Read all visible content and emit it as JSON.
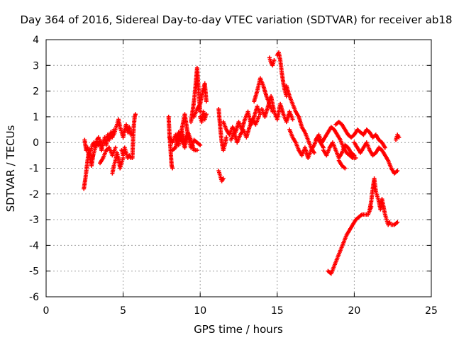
{
  "chart_data": {
    "type": "scatter",
    "title": "Day 364 of 2016, Sidereal Day-to-day VTEC variation (SDTVAR) for receiver ab18",
    "xlabel": "GPS time / hours",
    "ylabel": "SDTVAR / TECUs",
    "xlim": [
      0,
      25
    ],
    "ylim": [
      -6,
      4
    ],
    "xticks": [
      0,
      5,
      10,
      15,
      20,
      25
    ],
    "yticks": [
      -6,
      -5,
      -4,
      -3,
      -2,
      -1,
      0,
      1,
      2,
      3,
      4
    ],
    "grid": true,
    "marker": "+",
    "color": "#ff0000",
    "series": [
      {
        "name": "SDTVAR",
        "segments": [
          {
            "x": [
              2.45,
              2.55,
              2.65,
              2.75,
              2.85,
              2.95,
              3.05
            ],
            "y": [
              -1.8,
              -1.4,
              -0.9,
              -0.4,
              -0.6,
              -0.9,
              -0.5
            ]
          },
          {
            "x": [
              2.5,
              2.6,
              2.7,
              2.8,
              2.9,
              3.0,
              3.1,
              3.2,
              3.3,
              3.4
            ],
            "y": [
              0.1,
              -0.3,
              -0.2,
              -0.5,
              -0.3,
              -0.1,
              0.0,
              -0.2,
              0.1,
              0.2
            ]
          },
          {
            "x": [
              3.0,
              3.1,
              3.2,
              3.3,
              3.4,
              3.5,
              3.6,
              3.7,
              3.8,
              3.9,
              4.0,
              4.1,
              4.2,
              4.3,
              4.4
            ],
            "y": [
              -0.6,
              -0.4,
              -0.2,
              0.0,
              -0.1,
              0.1,
              -0.3,
              0.0,
              0.2,
              -0.1,
              0.3,
              0.1,
              0.4,
              0.2,
              0.5
            ]
          },
          {
            "x": [
              3.5,
              3.7,
              3.9,
              4.1,
              4.3,
              4.5
            ],
            "y": [
              -0.8,
              -0.6,
              -0.3,
              -0.2,
              -0.5,
              -0.2
            ]
          },
          {
            "x": [
              4.3,
              4.4,
              4.5,
              4.6,
              4.7,
              4.8,
              4.9,
              5.0
            ],
            "y": [
              -1.2,
              -0.9,
              -0.7,
              -0.4,
              -0.6,
              -1.0,
              -0.8,
              -0.6
            ]
          },
          {
            "x": [
              4.4,
              4.5,
              4.6,
              4.7,
              4.8,
              4.9,
              5.0,
              5.1,
              5.2,
              5.3,
              5.4,
              5.5
            ],
            "y": [
              0.3,
              0.5,
              0.7,
              0.9,
              0.6,
              0.4,
              0.2,
              0.5,
              0.7,
              0.4,
              0.6,
              0.3
            ]
          },
          {
            "x": [
              4.9,
              5.0,
              5.1,
              5.2,
              5.3,
              5.4,
              5.5
            ],
            "y": [
              -0.3,
              -0.5,
              -0.2,
              -0.4,
              -0.6,
              -0.5,
              -0.6
            ]
          },
          {
            "x": [
              5.6,
              5.65,
              5.7,
              5.75,
              5.8
            ],
            "y": [
              -0.6,
              0.2,
              0.7,
              1.0,
              1.1
            ]
          },
          {
            "x": [
              7.95,
              8.0,
              8.05,
              8.1,
              8.15,
              8.2
            ],
            "y": [
              1.0,
              0.4,
              0.0,
              -0.5,
              -0.9,
              -1.0
            ]
          },
          {
            "x": [
              8.0,
              8.2,
              8.4,
              8.6,
              8.8,
              9.0,
              9.2,
              9.4,
              9.6,
              9.8,
              10.0
            ],
            "y": [
              0.2,
              0.0,
              0.3,
              -0.1,
              0.5,
              0.0,
              0.3,
              -0.2,
              0.1,
              0.0,
              -0.1
            ]
          },
          {
            "x": [
              8.2,
              8.4,
              8.6,
              8.8,
              9.0,
              9.2,
              9.4,
              9.6,
              9.8
            ],
            "y": [
              -0.3,
              -0.2,
              0.4,
              0.1,
              -0.2,
              0.4,
              0.1,
              -0.3,
              -0.3
            ]
          },
          {
            "x": [
              8.8,
              8.9,
              9.0,
              9.1,
              9.2
            ],
            "y": [
              0.5,
              0.8,
              1.1,
              0.7,
              0.3
            ]
          },
          {
            "x": [
              9.4,
              9.5,
              9.6,
              9.7,
              9.8,
              9.9,
              10.0
            ],
            "y": [
              0.8,
              1.2,
              1.6,
              2.2,
              2.9,
              2.0,
              1.2
            ]
          },
          {
            "x": [
              9.6,
              9.8,
              10.0,
              10.1,
              10.2,
              10.3,
              10.4
            ],
            "y": [
              1.0,
              1.3,
              1.5,
              1.8,
              2.1,
              2.3,
              1.6
            ]
          },
          {
            "x": [
              10.0,
              10.1,
              10.2,
              10.3,
              10.4
            ],
            "y": [
              1.0,
              0.8,
              1.2,
              0.9,
              1.1
            ]
          },
          {
            "x": [
              11.2,
              11.3,
              11.4,
              11.5
            ],
            "y": [
              -1.1,
              -1.3,
              -1.5,
              -1.4
            ]
          },
          {
            "x": [
              11.2,
              11.3,
              11.4,
              11.5,
              11.6,
              11.7
            ],
            "y": [
              1.3,
              0.6,
              0.0,
              -0.3,
              -0.1,
              0.2
            ]
          },
          {
            "x": [
              11.5,
              11.7,
              11.9,
              12.1,
              12.3,
              12.5,
              12.7,
              12.9,
              13.1,
              13.3,
              13.5,
              13.7,
              13.9
            ],
            "y": [
              0.8,
              0.5,
              0.3,
              0.6,
              0.4,
              0.8,
              0.5,
              0.9,
              1.2,
              0.7,
              1.0,
              1.4,
              1.1
            ]
          },
          {
            "x": [
              12.0,
              12.2,
              12.4,
              12.6,
              12.8,
              13.0,
              13.2,
              13.4,
              13.6,
              13.8
            ],
            "y": [
              0.1,
              0.4,
              0.0,
              0.3,
              0.5,
              0.2,
              0.6,
              0.9,
              0.7,
              1.0
            ]
          },
          {
            "x": [
              13.5,
              13.7,
              13.9,
              14.1,
              14.3,
              14.5,
              14.7
            ],
            "y": [
              1.6,
              2.0,
              2.5,
              2.2,
              1.8,
              1.5,
              1.2
            ]
          },
          {
            "x": [
              14.0,
              14.2,
              14.4,
              14.6,
              14.8,
              15.0,
              15.2,
              15.4,
              15.6,
              15.8,
              16.0
            ],
            "y": [
              1.3,
              1.0,
              1.4,
              1.8,
              1.2,
              0.9,
              1.5,
              1.1,
              0.8,
              1.2,
              0.9
            ]
          },
          {
            "x": [
              14.5,
              14.6,
              14.7,
              14.8
            ],
            "y": [
              3.3,
              3.1,
              3.0,
              3.2
            ]
          },
          {
            "x": [
              15.0,
              15.1,
              15.2,
              15.3,
              15.4,
              15.5,
              15.6
            ],
            "y": [
              3.4,
              3.5,
              3.2,
              2.7,
              2.3,
              2.0,
              1.8
            ]
          },
          {
            "x": [
              15.6,
              15.8,
              16.0,
              16.2,
              16.4,
              16.6,
              16.8,
              17.0,
              17.2,
              17.4
            ],
            "y": [
              2.2,
              1.8,
              1.5,
              1.2,
              1.0,
              0.6,
              0.4,
              0.1,
              -0.2,
              -0.4
            ]
          },
          {
            "x": [
              15.8,
              16.0,
              16.2,
              16.4,
              16.6,
              16.8,
              17.0,
              17.2,
              17.4,
              17.6,
              17.8,
              18.0
            ],
            "y": [
              0.5,
              0.2,
              0.0,
              -0.3,
              -0.5,
              -0.2,
              -0.6,
              -0.3,
              -0.1,
              0.2,
              0.0,
              -0.2
            ]
          },
          {
            "x": [
              17.5,
              17.7,
              17.9,
              18.1,
              18.3,
              18.5,
              18.7,
              18.9,
              19.1,
              19.3,
              19.5,
              19.7,
              19.9,
              20.1
            ],
            "y": [
              0.1,
              0.3,
              0.0,
              0.2,
              0.4,
              0.6,
              0.5,
              0.3,
              0.1,
              -0.2,
              -0.4,
              -0.5,
              -0.6,
              -0.6
            ]
          },
          {
            "x": [
              18.0,
              18.2,
              18.4,
              18.6,
              18.8,
              19.0,
              19.2,
              19.4,
              19.6,
              19.8,
              20.0
            ],
            "y": [
              -0.3,
              -0.5,
              -0.2,
              0.0,
              -0.3,
              -0.6,
              -0.4,
              -0.1,
              -0.2,
              -0.4,
              -0.5
            ]
          },
          {
            "x": [
              18.8,
              19.0,
              19.2,
              19.4,
              19.6,
              19.8,
              20.0,
              20.2,
              20.4,
              20.6,
              20.8,
              21.0,
              21.2,
              21.4,
              21.6,
              21.8,
              22.0
            ],
            "y": [
              0.7,
              0.8,
              0.7,
              0.5,
              0.3,
              0.2,
              0.3,
              0.5,
              0.4,
              0.3,
              0.5,
              0.4,
              0.2,
              0.3,
              0.1,
              0.0,
              -0.2
            ]
          },
          {
            "x": [
              20.0,
              20.2,
              20.4,
              20.6,
              20.8,
              21.0,
              21.2,
              21.4,
              21.6,
              21.8,
              22.0,
              22.2,
              22.4,
              22.6,
              22.8
            ],
            "y": [
              0.0,
              -0.2,
              -0.4,
              -0.2,
              0.0,
              -0.3,
              -0.5,
              -0.4,
              -0.2,
              -0.3,
              -0.5,
              -0.7,
              -1.0,
              -1.2,
              -1.1
            ]
          },
          {
            "x": [
              19.0,
              19.2,
              19.4
            ],
            "y": [
              -0.7,
              -0.9,
              -1.0
            ]
          },
          {
            "x": [
              22.7,
              22.8,
              22.9
            ],
            "y": [
              0.1,
              0.3,
              0.2
            ]
          },
          {
            "x": [
              18.3,
              18.5,
              18.7,
              18.9,
              19.1,
              19.3,
              19.5,
              19.7,
              19.9,
              20.1,
              20.3,
              20.5,
              20.7,
              20.9,
              21.1
            ],
            "y": [
              -5.0,
              -5.1,
              -4.8,
              -4.5,
              -4.2,
              -3.9,
              -3.6,
              -3.4,
              -3.2,
              -3.0,
              -2.9,
              -2.8,
              -2.8,
              -2.8,
              -2.5
            ]
          },
          {
            "x": [
              21.0,
              21.1,
              21.2,
              21.3,
              21.4,
              21.5,
              21.6,
              21.7,
              21.8,
              21.9,
              22.0,
              22.1,
              22.2,
              22.3
            ],
            "y": [
              -2.6,
              -2.3,
              -1.8,
              -1.4,
              -1.9,
              -2.1,
              -2.3,
              -2.6,
              -2.2,
              -2.5,
              -2.8,
              -3.0,
              -3.2,
              -3.1
            ]
          },
          {
            "x": [
              22.4,
              22.6,
              22.8
            ],
            "y": [
              -3.2,
              -3.2,
              -3.1
            ]
          }
        ]
      }
    ]
  }
}
